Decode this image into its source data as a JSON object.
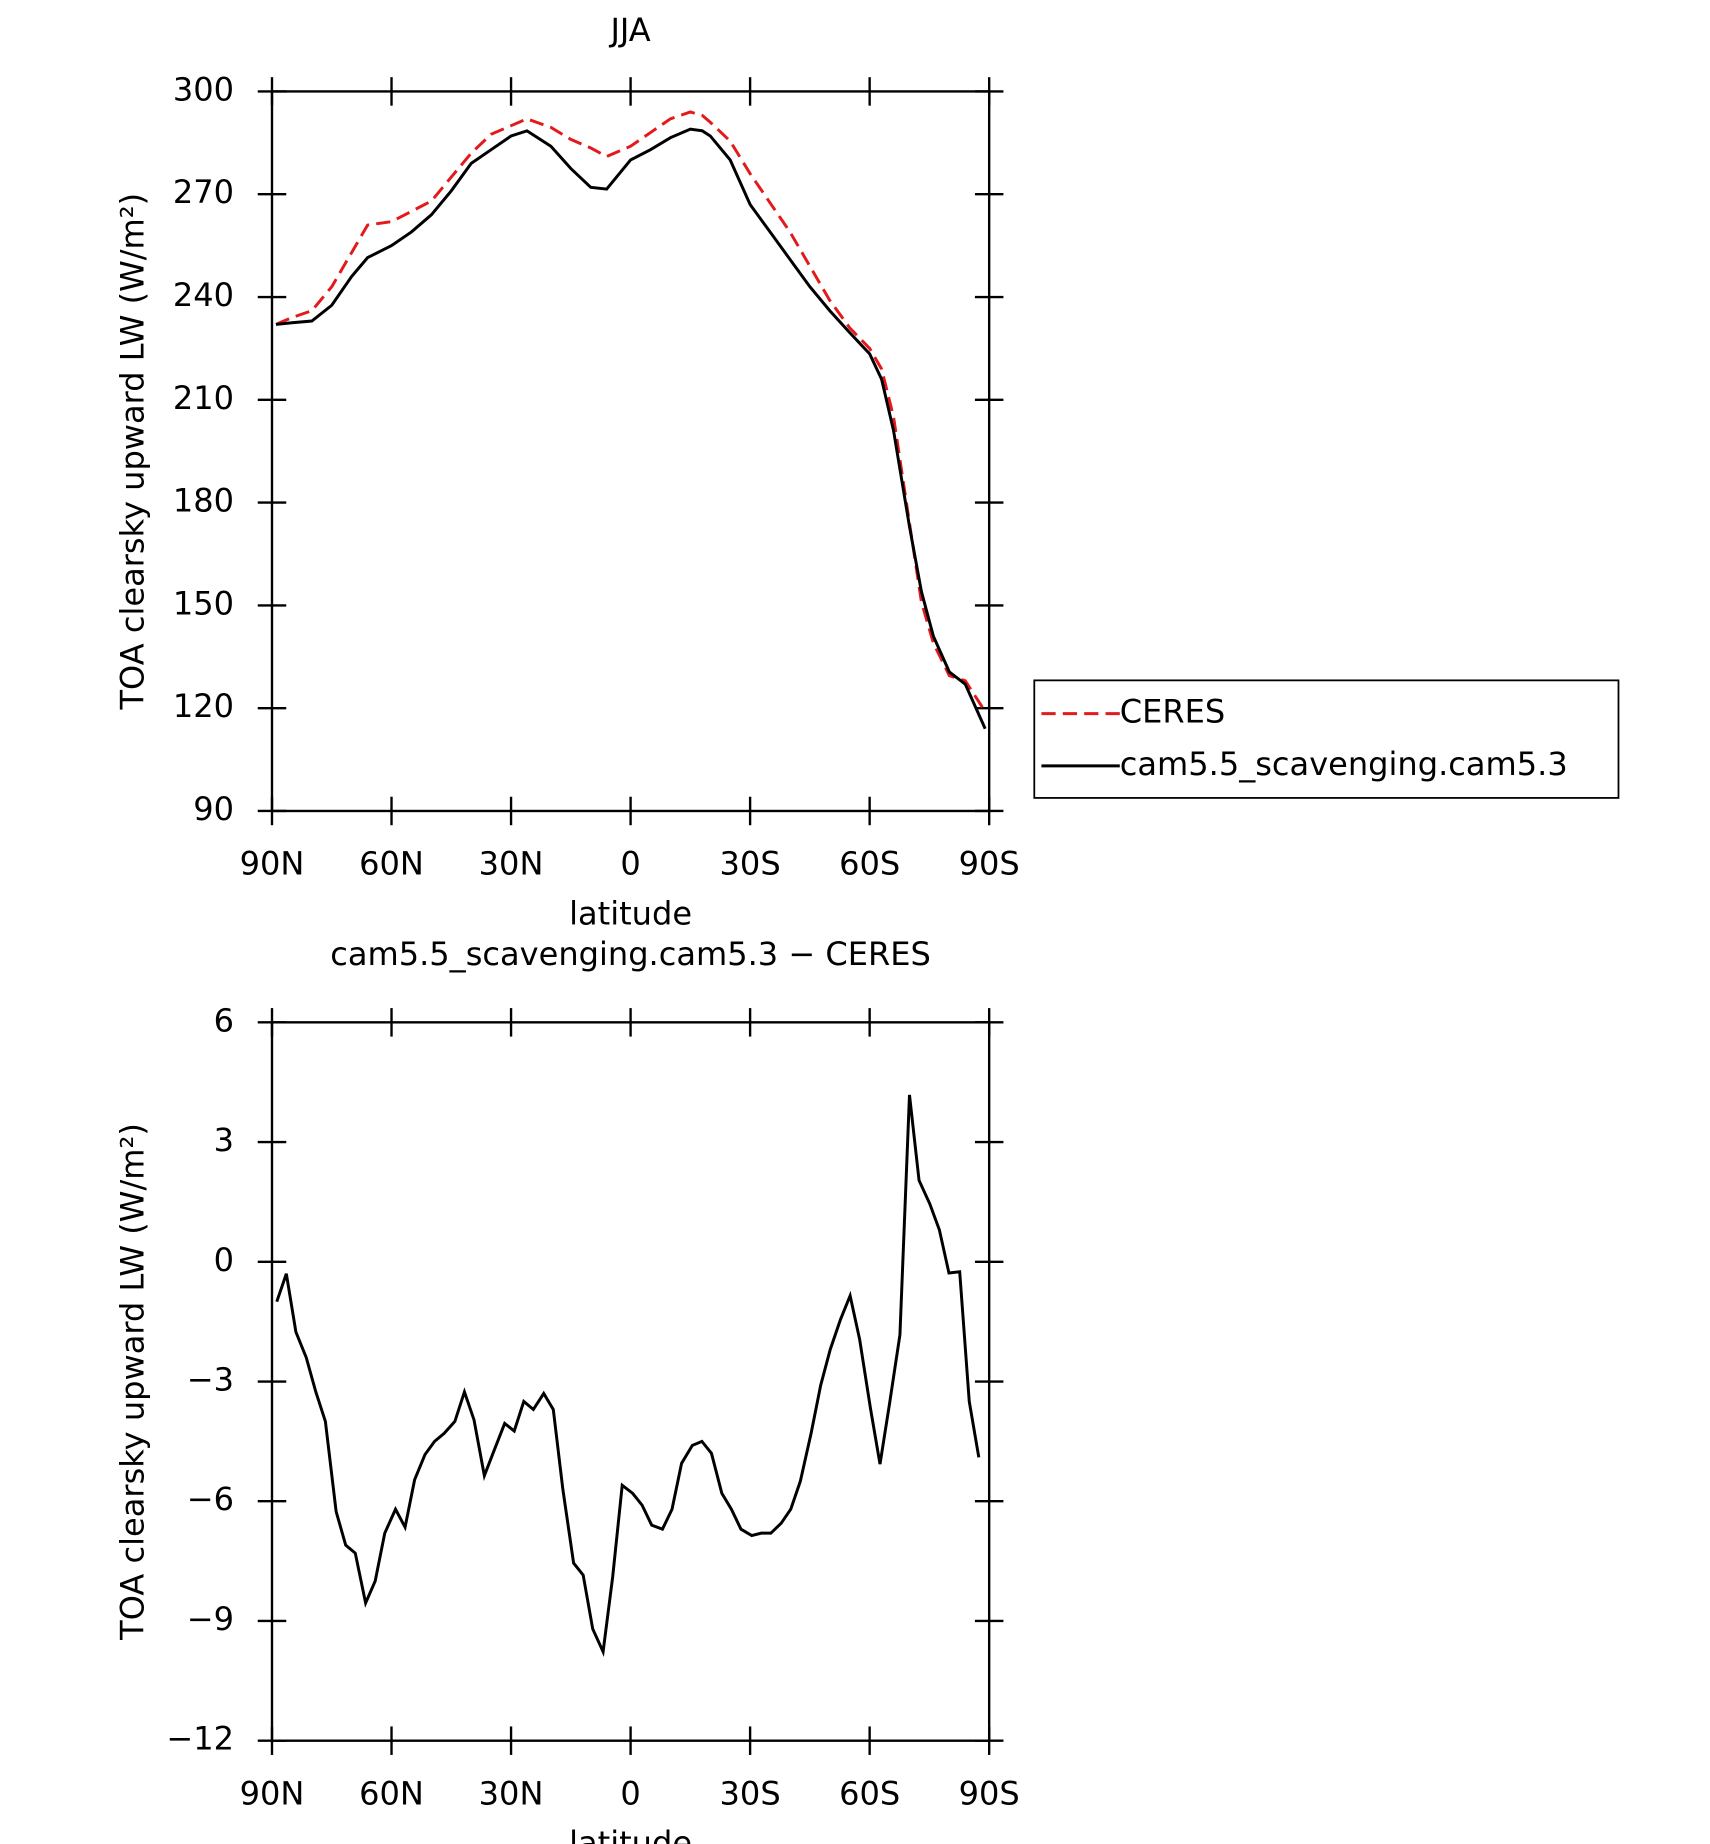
{
  "chart_data": [
    {
      "type": "line",
      "title": "JJA",
      "y_label": "TOA clearsky upward LW (W/m²)",
      "x_label": "latitude",
      "xlim": [
        90,
        -90
      ],
      "xticks": [
        {
          "value": 90,
          "label": "90N"
        },
        {
          "value": 60,
          "label": "60N"
        },
        {
          "value": 30,
          "label": "30N"
        },
        0,
        {
          "value": -30,
          "label": "30S"
        },
        {
          "value": -60,
          "label": "60S"
        },
        {
          "value": -90,
          "label": "90S"
        }
      ],
      "ylim": [
        90,
        300
      ],
      "yticks": [
        90,
        120,
        150,
        180,
        210,
        240,
        270,
        300
      ],
      "legend": "right",
      "x": [
        89,
        85,
        80,
        75,
        70,
        66,
        60,
        55,
        50,
        45,
        40,
        35,
        30,
        26,
        20,
        15,
        10,
        6,
        0,
        -5,
        -10,
        -15,
        -18,
        -20,
        -25,
        -30,
        -35,
        -40,
        -45,
        -50,
        -55,
        -60,
        -63,
        -66,
        -70,
        -73,
        -76,
        -80,
        -84,
        -89
      ],
      "series": [
        {
          "name": "CERES",
          "color": "#e31a1c",
          "line_style": "dashed",
          "values": [
            232,
            234,
            236,
            243,
            253,
            261,
            262,
            265,
            268,
            275,
            282,
            287.5,
            290,
            292,
            289.5,
            286,
            283.5,
            281,
            284,
            288,
            292,
            294,
            293,
            291,
            285.5,
            276,
            267.5,
            259,
            249,
            239,
            231,
            225,
            219,
            205,
            174,
            151,
            139,
            129.5,
            128,
            119
          ]
        },
        {
          "name": "cam5.5_scavenging.cam5.3",
          "color": "#000000",
          "line_style": "solid",
          "values": [
            232,
            232.5,
            233,
            237.6,
            246,
            251.5,
            255,
            259,
            264,
            271,
            279,
            283,
            287,
            288.5,
            284,
            277.5,
            272,
            271.5,
            280,
            283,
            286.5,
            289,
            288.5,
            287,
            280,
            267,
            259,
            251,
            243,
            236,
            229.6,
            223.4,
            216,
            201,
            173,
            154,
            141,
            130.6,
            127,
            114
          ]
        }
      ]
    },
    {
      "type": "line",
      "title": "cam5.5_scavenging.cam5.3 − CERES",
      "y_label": "TOA clearsky upward LW (W/m²)",
      "x_label": "latitude",
      "xlim": [
        90,
        -90
      ],
      "xticks": [
        {
          "value": 90,
          "label": "90N"
        },
        {
          "value": 60,
          "label": "60N"
        },
        {
          "value": 30,
          "label": "30N"
        },
        0,
        {
          "value": -30,
          "label": "30S"
        },
        {
          "value": -60,
          "label": "60S"
        },
        {
          "value": -90,
          "label": "90S"
        }
      ],
      "ylim": [
        -12,
        6
      ],
      "yticks": [
        {
          "value": -12,
          "label": "−12"
        },
        {
          "value": -9,
          "label": "−9"
        },
        {
          "value": -6,
          "label": "−6"
        },
        {
          "value": -3,
          "label": "−3"
        },
        0,
        3,
        6
      ],
      "x": [
        88.8,
        86.4,
        84,
        81.4,
        79,
        76.6,
        73.9,
        71.5,
        69.1,
        66.5,
        64.1,
        61.7,
        59,
        56.6,
        54.2,
        51.6,
        49.2,
        46.8,
        44.1,
        41.7,
        39.3,
        36.7,
        34.3,
        31.6,
        29.2,
        26.8,
        24.4,
        21.8,
        19.4,
        17,
        14.3,
        11.9,
        9.5,
        6.9,
        4.5,
        2.1,
        -0.5,
        -2.9,
        -5.3,
        -8,
        -10.4,
        -12.8,
        -15.5,
        -17.9,
        -20.3,
        -22.9,
        -25.3,
        -27.7,
        -30.4,
        -32.8,
        -35.2,
        -37.8,
        -40.2,
        -42.6,
        -45.3,
        -47.7,
        -50.1,
        -52.7,
        -55.1,
        -57.5,
        -60.2,
        -62.6,
        -65,
        -67.6,
        -70,
        -72.4,
        -75.1,
        -77.5,
        -79.9,
        -82.6,
        -85,
        -87.4
      ],
      "series": [
        {
          "color": "#000000",
          "line_style": "solid",
          "values": [
            -1.0,
            -0.3,
            -1.76,
            -2.4,
            -3.26,
            -4.0,
            -6.26,
            -7.1,
            -7.3,
            -8.55,
            -8.0,
            -6.8,
            -6.2,
            -6.65,
            -5.46,
            -4.83,
            -4.5,
            -4.3,
            -4.0,
            -3.26,
            -3.96,
            -5.36,
            -4.74,
            -4.05,
            -4.24,
            -3.5,
            -3.7,
            -3.3,
            -3.7,
            -5.7,
            -7.55,
            -7.85,
            -9.2,
            -9.77,
            -7.9,
            -5.6,
            -5.8,
            -6.1,
            -6.6,
            -6.7,
            -6.2,
            -5.05,
            -4.6,
            -4.5,
            -4.8,
            -5.8,
            -6.2,
            -6.7,
            -6.86,
            -6.8,
            -6.8,
            -6.55,
            -6.2,
            -5.5,
            -4.3,
            -3.1,
            -2.2,
            -1.44,
            -0.85,
            -1.95,
            -3.67,
            -5.07,
            -3.55,
            -1.83,
            4.18,
            2.04,
            1.45,
            0.8,
            -0.28,
            -0.25,
            -3.5,
            -4.9
          ]
        }
      ]
    }
  ]
}
